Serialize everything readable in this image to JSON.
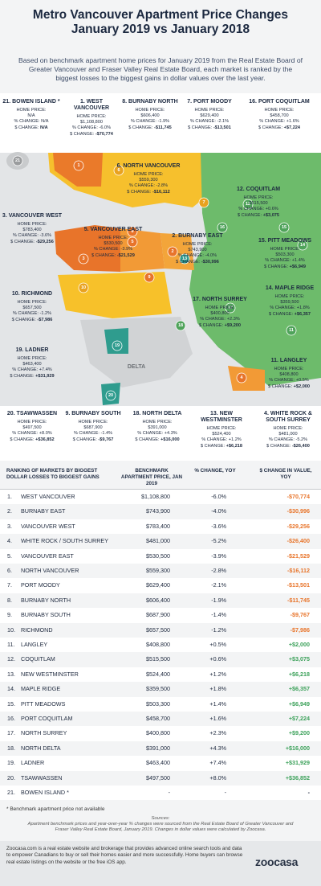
{
  "header": {
    "title": [
      "Metro Vancouver Apartment Price Changes",
      "January 2019 vs January 2018"
    ],
    "intro": "Based on benchmark apartment home prices for January 2019 from the Real Estate Board of Greater Vancouver and Fraser Valley Real Estate Board, each market is ranked by the biggest losses to the biggest gains in dollar values over the last year."
  },
  "map": {
    "labels": {
      "price": "HOME PRICE:",
      "pct": "% CHANGE:",
      "dollar": "$ CHANGE:"
    },
    "region_label": "DELTA",
    "markers": [
      "21",
      "1",
      "6",
      "7",
      "12",
      "16",
      "15",
      "14",
      "3",
      "5",
      "8",
      "2",
      "13",
      "9",
      "10",
      "18",
      "17",
      "19",
      "11",
      "4",
      "20"
    ],
    "callouts": [
      {
        "name": "21. BOWEN ISLAND *",
        "price": "N/A",
        "pct": "N/A",
        "dollar": "N/A"
      },
      {
        "name": "1. WEST VANCOUVER",
        "price": "$1,108,800",
        "pct": "-6.0%",
        "dollar": "-$70,774"
      },
      {
        "name": "8. BURNABY NORTH",
        "price": "$606,400",
        "pct": "-1.9%",
        "dollar": "-$11,745"
      },
      {
        "name": "7. PORT MOODY",
        "price": "$629,400",
        "pct": "-2.1%",
        "dollar": "-$13,501"
      },
      {
        "name": "16. PORT COQUITLAM",
        "price": "$458,700",
        "pct": "+1.6%",
        "dollar": "+$7,224"
      },
      {
        "name": "6. NORTH VANCOUVER",
        "price": "$559,300",
        "pct": "-2.8%",
        "dollar": "-$16,112"
      },
      {
        "name": "12. COQUITLAM",
        "price": "$515,500",
        "pct": "+0.6%",
        "dollar": "+$3,075"
      },
      {
        "name": "3. VANCOUVER WEST",
        "price": "$783,400",
        "pct": "-3.6%",
        "dollar": "-$29,256"
      },
      {
        "name": "5. VANCOUVER EAST",
        "price": "$530,500",
        "pct": "-3.9%",
        "dollar": "-$21,529"
      },
      {
        "name": "2. BURNABY EAST",
        "price": "$743,900",
        "pct": "-4.0%",
        "dollar": "-$30,996"
      },
      {
        "name": "15. PITT MEADOWS",
        "price": "$503,300",
        "pct": "+1.4%",
        "dollar": "+$6,949"
      },
      {
        "name": "10. RICHMOND",
        "price": "$657,500",
        "pct": "-1.2%",
        "dollar": "-$7,986"
      },
      {
        "name": "17. NORTH SURREY",
        "price": "$400,800",
        "pct": "+2.3%",
        "dollar": "+$9,200"
      },
      {
        "name": "14. MAPLE RIDGE",
        "price": "$359,500",
        "pct": "+1.8%",
        "dollar": "+$6,357"
      },
      {
        "name": "19. LADNER",
        "price": "$463,400",
        "pct": "+7.4%",
        "dollar": "+$31,929"
      },
      {
        "name": "11. LANGLEY",
        "price": "$408,800",
        "pct": "+0.5%",
        "dollar": "+$2,000"
      },
      {
        "name": "20. TSAWWASSEN",
        "price": "$497,500",
        "pct": "+8.0%",
        "dollar": "+$36,852"
      },
      {
        "name": "9. BURNABY SOUTH",
        "price": "$687,900",
        "pct": "-1.4%",
        "dollar": "-$9,767"
      },
      {
        "name": "18. NORTH DELTA",
        "price": "$391,000",
        "pct": "+4.3%",
        "dollar": "+$16,000"
      },
      {
        "name": "13. NEW WESTMINSTER",
        "price": "$524,400",
        "pct": "+1.2%",
        "dollar": "+$6,218"
      },
      {
        "name": "4. WHITE ROCK & SOUTH SURREY",
        "price": "$481,000",
        "pct": "-5.2%",
        "dollar": "-$26,400"
      }
    ]
  },
  "table": {
    "columns": [
      "RANKING OF MARKETS BY BIGGEST DOLLAR LOSSES TO BIGGEST GAINS",
      "BENCHMARK APARTMENT PRICE, JAN 2019",
      "% CHANGE, YOY",
      "$ CHANGE IN VALUE, YOY"
    ],
    "rows": [
      [
        "1.",
        "WEST VANCOUVER",
        "$1,108,800",
        "-6.0%",
        "-$70,774"
      ],
      [
        "2.",
        "BURNABY EAST",
        "$743,900",
        "-4.0%",
        "-$30,996"
      ],
      [
        "3.",
        "VANCOUVER WEST",
        "$783,400",
        "-3.6%",
        "-$29,256"
      ],
      [
        "4.",
        "WHITE ROCK / SOUTH SURREY",
        "$481,000",
        "-5.2%",
        "-$26,400"
      ],
      [
        "5.",
        "VANCOUVER EAST",
        "$530,500",
        "-3.9%",
        "-$21,529"
      ],
      [
        "6.",
        "NORTH VANCOUVER",
        "$559,300",
        "-2.8%",
        "-$16,112"
      ],
      [
        "7.",
        "PORT MOODY",
        "$629,400",
        "-2.1%",
        "-$13,501"
      ],
      [
        "8.",
        "BURNABY NORTH",
        "$606,400",
        "-1.9%",
        "-$11,745"
      ],
      [
        "9.",
        "BURNABY SOUTH",
        "$687,900",
        "-1.4%",
        "-$9,767"
      ],
      [
        "10.",
        "RICHMOND",
        "$657,500",
        "-1.2%",
        "-$7,986"
      ],
      [
        "11.",
        "LANGLEY",
        "$408,800",
        "+0.5%",
        "+$2,000"
      ],
      [
        "12.",
        "COQUITLAM",
        "$515,500",
        "+0.6%",
        "+$3,075"
      ],
      [
        "13.",
        "NEW WESTMINSTER",
        "$524,400",
        "+1.2%",
        "+$6,218"
      ],
      [
        "14.",
        "MAPLE RIDGE",
        "$359,500",
        "+1.8%",
        "+$6,357"
      ],
      [
        "15.",
        "PITT MEADOWS",
        "$503,300",
        "+1.4%",
        "+$6,949"
      ],
      [
        "16.",
        "PORT COQUITLAM",
        "$458,700",
        "+1.6%",
        "+$7,224"
      ],
      [
        "17.",
        "NORTH SURREY",
        "$400,800",
        "+2.3%",
        "+$9,200"
      ],
      [
        "18.",
        "NORTH DELTA",
        "$391,000",
        "+4.3%",
        "+$16,000"
      ],
      [
        "19.",
        "LADNER",
        "$463,400",
        "+7.4%",
        "+$31,929"
      ],
      [
        "20.",
        "TSAWWASSEN",
        "$497,500",
        "+8.0%",
        "+$36,852"
      ],
      [
        "21.",
        "BOWEN ISLAND *",
        "-",
        "-",
        "-"
      ]
    ],
    "footnote": "* Benchmark apartment price not available"
  },
  "sources": {
    "heading": "Sources:",
    "text": "Apartment benchmark prices and year-over-year % changes were sourced from the Real Estate Board of Greater Vancouver and Fraser Valley Real Estate Board, January 2019. Changes in dollar values were calculated by Zoocasa."
  },
  "footer": {
    "text": "Zoocasa.com is a real estate website and brokerage that provides advanced online search tools and data to empower Canadians to buy or sell their homes easier and more successfully. Home buyers can browse real estate listings on the website or the free iOS app.",
    "logo": "zoocasa"
  }
}
